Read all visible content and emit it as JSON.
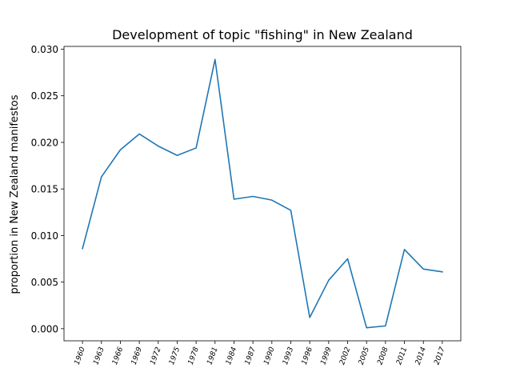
{
  "chart_data": {
    "type": "line",
    "title": "Development of topic \"fishing\" in New Zealand",
    "xlabel": "",
    "ylabel": "proportion in New Zealand manifestos",
    "categories": [
      "1960",
      "1963",
      "1966",
      "1969",
      "1972",
      "1975",
      "1978",
      "1981",
      "1984",
      "1987",
      "1990",
      "1993",
      "1996",
      "1999",
      "2002",
      "2005",
      "2008",
      "2011",
      "2014",
      "2017"
    ],
    "series": [
      {
        "values": [
          0.0086,
          0.0163,
          0.0192,
          0.0209,
          0.0196,
          0.0186,
          0.0194,
          0.0289,
          0.0139,
          0.0142,
          0.0138,
          0.0127,
          0.0012,
          0.0052,
          0.0075,
          0.0001,
          0.0003,
          0.0085,
          0.0064,
          0.0061
        ],
        "color": "#1f77b4"
      }
    ],
    "ylim": [
      -0.0013,
      0.0303
    ],
    "yticks": [
      "0.000",
      "0.005",
      "0.010",
      "0.015",
      "0.020",
      "0.025",
      "0.030"
    ],
    "grid": false
  }
}
